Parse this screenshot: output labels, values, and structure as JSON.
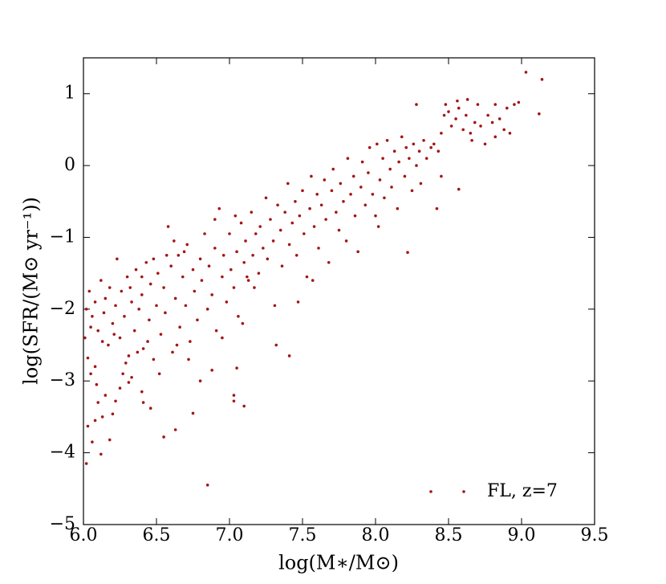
{
  "chart_data": {
    "type": "scatter",
    "xlabel": "log(M∗/M⊙)",
    "ylabel": "log(SFR/(M⊙ yr⁻¹))",
    "xlim": [
      6.0,
      9.5
    ],
    "ylim": [
      -5,
      1.5
    ],
    "xticks": [
      {
        "value": 6,
        "label": "6.0"
      },
      6.5,
      {
        "value": 7,
        "label": "7.0"
      },
      7.5,
      {
        "value": 8,
        "label": "8.0"
      },
      8.5,
      {
        "value": 9,
        "label": "9.0"
      },
      9.5
    ],
    "yticks": [
      {
        "value": -5,
        "label": "−5"
      },
      {
        "value": -4,
        "label": "−4"
      },
      {
        "value": -3,
        "label": "−3"
      },
      {
        "value": -2,
        "label": "−2"
      },
      {
        "value": -1,
        "label": "−1"
      },
      0,
      1
    ],
    "grid": false,
    "legend": "lower right",
    "x": [
      9.03,
      9.14,
      8.63,
      8.48,
      8.22,
      8.42,
      8.57,
      6.85,
      6.02,
      6.55,
      6.12,
      6.06,
      7.41,
      7.32,
      7.1,
      7.03,
      7.03,
      7.05,
      6.75,
      6.63,
      6.8,
      6.46,
      6.2,
      6.18,
      6.08,
      6.13,
      6.03,
      6.1,
      6.15,
      6.05,
      6.09,
      6.03,
      6.01,
      6.08,
      6.27,
      6.33,
      6.25,
      6.4,
      6.41,
      6.22,
      6.31,
      6.02,
      6.04,
      6.06,
      6.08,
      6.1,
      6.12,
      6.14,
      6.15,
      6.17,
      6.18,
      6.2,
      6.22,
      6.23,
      6.25,
      6.26,
      6.28,
      6.3,
      6.31,
      6.33,
      6.35,
      6.36,
      6.38,
      6.4,
      6.41,
      6.43,
      6.45,
      6.46,
      6.48,
      6.5,
      6.51,
      6.53,
      6.55,
      6.56,
      6.58,
      6.6,
      6.61,
      6.63,
      6.65,
      6.66,
      6.68,
      6.7,
      6.71,
      6.73,
      6.75,
      6.76,
      6.78,
      6.8,
      6.81,
      6.83,
      6.85,
      6.86,
      6.88,
      6.9,
      6.91,
      6.93,
      6.95,
      6.96,
      6.98,
      7.0,
      7.01,
      7.03,
      7.05,
      7.06,
      7.08,
      7.1,
      7.11,
      7.13,
      7.15,
      7.16,
      7.18,
      7.2,
      7.21,
      7.23,
      7.25,
      7.26,
      7.28,
      7.3,
      7.31,
      7.33,
      7.35,
      7.36,
      7.38,
      7.4,
      7.41,
      7.43,
      7.45,
      7.46,
      7.48,
      7.5,
      7.51,
      7.53,
      7.55,
      7.56,
      7.58,
      7.6,
      7.61,
      7.63,
      7.65,
      7.66,
      7.68,
      7.7,
      7.71,
      7.73,
      7.75,
      7.76,
      7.78,
      7.8,
      7.81,
      7.83,
      7.85,
      7.86,
      7.88,
      7.9,
      7.91,
      7.93,
      7.95,
      7.96,
      7.98,
      8.0,
      8.01,
      8.03,
      8.05,
      8.06,
      8.08,
      8.1,
      8.11,
      8.13,
      8.15,
      8.16,
      8.18,
      8.2,
      8.21,
      8.23,
      8.25,
      8.26,
      8.28,
      8.3,
      8.31,
      8.33,
      8.35,
      8.38,
      8.4,
      8.43,
      8.45,
      8.47,
      8.5,
      8.52,
      8.55,
      8.57,
      8.6,
      8.62,
      8.65,
      8.68,
      8.7,
      8.72,
      8.75,
      8.77,
      8.8,
      8.82,
      8.85,
      8.88,
      8.9,
      8.92,
      8.95,
      8.28,
      8.02,
      7.57,
      7.17,
      7.09,
      6.95,
      6.88,
      6.72,
      6.64,
      6.52,
      6.44,
      6.37,
      6.29,
      6.21,
      6.13,
      6.05,
      6.57,
      6.69,
      6.4,
      6.32,
      6.9,
      7.04,
      6.48,
      6.62,
      7.47,
      7.12,
      8.45,
      8.56,
      8.66,
      8.82,
      9.12,
      8.98
    ],
    "series": [
      {
        "name": "FL, z=7",
        "color": "#a31515",
        "values": [
          1.3,
          1.2,
          0.92,
          0.85,
          -1.21,
          -0.6,
          -0.33,
          -4.45,
          -4.15,
          -3.78,
          -4.02,
          -3.85,
          -2.65,
          -2.5,
          -3.35,
          -3.28,
          -3.2,
          -2.82,
          -3.45,
          -3.68,
          -3.0,
          -3.38,
          -3.46,
          -3.82,
          -3.55,
          -3.5,
          -3.63,
          -3.3,
          -3.2,
          -2.9,
          -3.05,
          -2.68,
          -2.4,
          -2.8,
          -2.9,
          -2.95,
          -3.1,
          -3.15,
          -3.3,
          -3.28,
          -3.02,
          -2.0,
          -1.75,
          -2.1,
          -1.9,
          -2.3,
          -1.6,
          -2.05,
          -1.85,
          -2.5,
          -1.7,
          -2.2,
          -1.95,
          -1.3,
          -2.4,
          -1.75,
          -2.1,
          -1.55,
          -2.65,
          -1.9,
          -2.3,
          -1.45,
          -2.0,
          -1.8,
          -2.55,
          -1.35,
          -2.15,
          -1.65,
          -2.7,
          -1.95,
          -1.5,
          -2.35,
          -1.7,
          -2.05,
          -0.85,
          -1.4,
          -2.6,
          -1.85,
          -1.25,
          -2.25,
          -1.55,
          -1.95,
          -1.1,
          -2.45,
          -1.45,
          -1.75,
          -2.15,
          -1.3,
          -1.6,
          -0.95,
          -2.0,
          -1.4,
          -1.8,
          -1.15,
          -2.3,
          -0.6,
          -1.55,
          -1.25,
          -1.9,
          -0.95,
          -1.45,
          -1.7,
          -1.2,
          -2.1,
          -0.8,
          -1.35,
          -1.05,
          -1.6,
          -0.65,
          -1.25,
          -0.95,
          -1.5,
          -0.85,
          -1.15,
          -0.45,
          -1.3,
          -0.75,
          -1.05,
          -1.95,
          -0.55,
          -0.9,
          -1.4,
          -0.65,
          -0.25,
          -1.1,
          -0.8,
          -0.5,
          -1.25,
          -0.7,
          -0.35,
          -0.95,
          -1.55,
          -0.6,
          -0.15,
          -0.85,
          -0.4,
          -1.15,
          -0.55,
          -0.2,
          -0.75,
          -1.35,
          -0.35,
          -0.05,
          -0.65,
          -0.9,
          -0.25,
          -0.5,
          -1.05,
          0.1,
          -0.4,
          -0.15,
          -0.7,
          -1.2,
          -0.3,
          0.05,
          -0.55,
          -0.1,
          0.25,
          -0.4,
          -0.7,
          0.3,
          -0.2,
          0.1,
          -0.45,
          0.35,
          -0.05,
          -0.3,
          0.2,
          -0.6,
          0.05,
          0.4,
          -0.15,
          0.25,
          0.1,
          -0.35,
          0.3,
          0.0,
          0.2,
          -0.25,
          0.35,
          0.1,
          0.25,
          0.3,
          0.2,
          0.45,
          0.7,
          0.75,
          0.55,
          0.65,
          0.8,
          0.5,
          0.7,
          0.45,
          0.6,
          0.85,
          0.55,
          0.3,
          0.7,
          0.6,
          0.4,
          0.65,
          0.5,
          0.8,
          0.45,
          0.85,
          0.85,
          -0.85,
          -1.6,
          -1.7,
          -2.2,
          -2.4,
          -2.85,
          -2.7,
          -2.5,
          -2.9,
          -2.45,
          -2.6,
          -2.75,
          -2.35,
          -2.45,
          -2.25,
          -1.25,
          -1.2,
          -1.55,
          -1.7,
          -0.75,
          -0.7,
          -1.3,
          -1.05,
          -1.9,
          -1.55,
          -0.15,
          0.9,
          0.35,
          0.85,
          0.72,
          0.88
        ]
      }
    ]
  }
}
